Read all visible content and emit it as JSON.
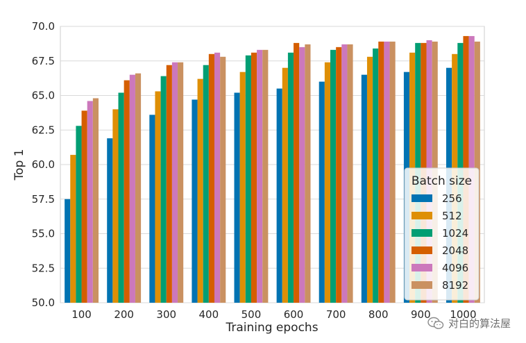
{
  "chart_data": {
    "type": "bar",
    "xlabel": "Training epochs",
    "ylabel": "Top 1",
    "ylim": [
      50.0,
      70.0
    ],
    "yticks": [
      "50.0",
      "52.5",
      "55.0",
      "57.5",
      "60.0",
      "62.5",
      "65.0",
      "67.5",
      "70.0"
    ],
    "categories": [
      "100",
      "200",
      "300",
      "400",
      "500",
      "600",
      "700",
      "800",
      "900",
      "1000"
    ],
    "grid": true,
    "legend": {
      "title": "Batch size",
      "placement": "lower-right"
    },
    "series": [
      {
        "name": "256",
        "color": "#0173b2",
        "values": [
          57.5,
          61.9,
          63.6,
          64.7,
          65.2,
          65.5,
          66.0,
          66.5,
          66.7,
          67.0
        ]
      },
      {
        "name": "512",
        "color": "#de8f05",
        "values": [
          60.7,
          64.0,
          65.3,
          66.2,
          66.7,
          67.0,
          67.4,
          67.8,
          68.1,
          68.0
        ]
      },
      {
        "name": "1024",
        "color": "#029e73",
        "values": [
          62.8,
          65.2,
          66.4,
          67.2,
          67.9,
          68.1,
          68.3,
          68.4,
          68.8,
          68.8
        ]
      },
      {
        "name": "2048",
        "color": "#d55e00",
        "values": [
          63.9,
          66.1,
          67.2,
          68.0,
          68.1,
          68.8,
          68.5,
          68.9,
          68.8,
          69.3
        ]
      },
      {
        "name": "4096",
        "color": "#cc78bc",
        "values": [
          64.6,
          66.5,
          67.4,
          68.1,
          68.3,
          68.5,
          68.7,
          68.9,
          69.0,
          69.3
        ]
      },
      {
        "name": "8192",
        "color": "#ca9161",
        "values": [
          64.8,
          66.6,
          67.4,
          67.8,
          68.3,
          68.7,
          68.7,
          68.9,
          68.9,
          68.9
        ]
      }
    ]
  },
  "watermark": {
    "text": "对白的算法屋",
    "icon": "wechat-icon"
  }
}
